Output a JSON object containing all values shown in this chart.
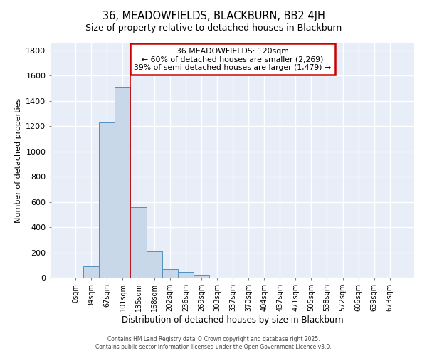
{
  "title": "36, MEADOWFIELDS, BLACKBURN, BB2 4JH",
  "subtitle": "Size of property relative to detached houses in Blackburn",
  "xlabel": "Distribution of detached houses by size in Blackburn",
  "ylabel": "Number of detached properties",
  "bar_labels": [
    "0sqm",
    "34sqm",
    "67sqm",
    "101sqm",
    "135sqm",
    "168sqm",
    "202sqm",
    "236sqm",
    "269sqm",
    "303sqm",
    "337sqm",
    "370sqm",
    "404sqm",
    "437sqm",
    "471sqm",
    "505sqm",
    "538sqm",
    "572sqm",
    "606sqm",
    "639sqm",
    "673sqm"
  ],
  "bar_values": [
    0,
    90,
    1230,
    1510,
    560,
    210,
    65,
    45,
    22,
    0,
    0,
    0,
    0,
    0,
    0,
    0,
    0,
    0,
    0,
    0,
    0
  ],
  "bar_color": "#c8d8e8",
  "bar_edge_color": "#5090c0",
  "vline_x": 3.5,
  "vline_color": "#cc0000",
  "annotation_title": "36 MEADOWFIELDS: 120sqm",
  "annotation_line1": "← 60% of detached houses are smaller (2,269)",
  "annotation_line2": "39% of semi-detached houses are larger (1,479) →",
  "annotation_box_color": "#cc0000",
  "ylim": [
    0,
    1860
  ],
  "yticks": [
    0,
    200,
    400,
    600,
    800,
    1000,
    1200,
    1400,
    1600,
    1800
  ],
  "footer1": "Contains HM Land Registry data © Crown copyright and database right 2025.",
  "footer2": "Contains public sector information licensed under the Open Government Licence v3.0.",
  "bg_color": "#ffffff",
  "plot_bg_color": "#e8eef8",
  "grid_color": "#ffffff"
}
